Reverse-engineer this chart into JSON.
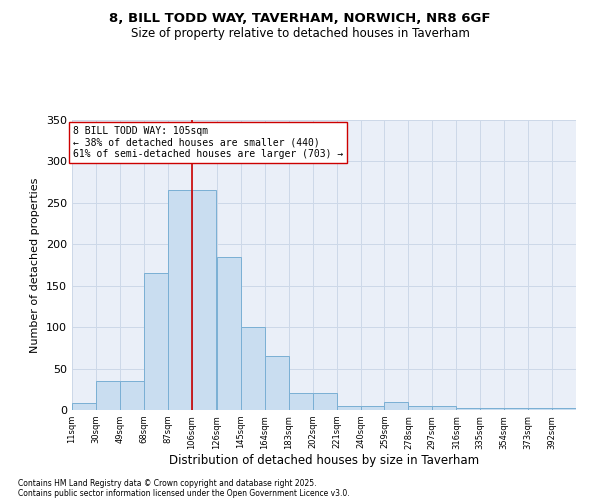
{
  "title_line1": "8, BILL TODD WAY, TAVERHAM, NORWICH, NR8 6GF",
  "title_line2": "Size of property relative to detached houses in Taverham",
  "xlabel": "Distribution of detached houses by size in Taverham",
  "ylabel": "Number of detached properties",
  "bins": [
    11,
    30,
    49,
    68,
    87,
    106,
    126,
    145,
    164,
    183,
    202,
    221,
    240,
    259,
    278,
    297,
    316,
    335,
    354,
    373,
    392
  ],
  "counts": [
    8,
    35,
    35,
    165,
    265,
    265,
    185,
    100,
    65,
    20,
    20,
    5,
    5,
    10,
    5,
    5,
    3,
    3,
    3,
    3,
    3
  ],
  "bar_facecolor": "#c9ddf0",
  "bar_edgecolor": "#7aafd4",
  "grid_color": "#cdd8e8",
  "bg_color": "#eaeff8",
  "vline_x": 106,
  "vline_color": "#cc0000",
  "annotation_text": "8 BILL TODD WAY: 105sqm\n← 38% of detached houses are smaller (440)\n61% of semi-detached houses are larger (703) →",
  "annotation_box_edgecolor": "#cc0000",
  "footer_line1": "Contains HM Land Registry data © Crown copyright and database right 2025.",
  "footer_line2": "Contains public sector information licensed under the Open Government Licence v3.0.",
  "ylim": [
    0,
    350
  ],
  "yticks": [
    0,
    50,
    100,
    150,
    200,
    250,
    300,
    350
  ]
}
